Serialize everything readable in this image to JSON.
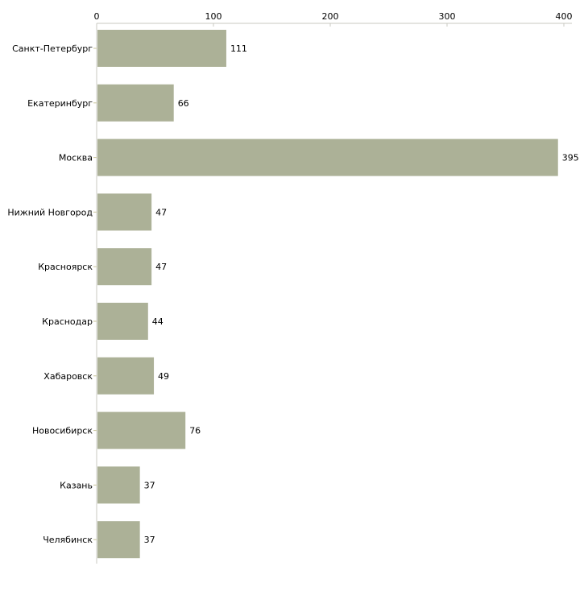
{
  "chart_data": {
    "type": "bar",
    "orientation": "horizontal",
    "title": "",
    "xlabel": "",
    "ylabel": "",
    "xlim": [
      0,
      400
    ],
    "xticks": [
      0,
      100,
      200,
      300,
      400
    ],
    "xtick_labels": [
      "0",
      "100",
      "200",
      "300",
      "400"
    ],
    "categories": [
      "Санкт-Петербург",
      "Екатеринбург",
      "Москва",
      "Нижний Новгород",
      "Красноярск",
      "Краснодар",
      "Хабаровск",
      "Новосибирск",
      "Казань",
      "Челябинск"
    ],
    "values": [
      111,
      66,
      395,
      47,
      47,
      44,
      49,
      76,
      37,
      37
    ],
    "bar_color": "#acb197",
    "axis_color": "#c8c8c0",
    "grid": false,
    "legend": "none"
  }
}
